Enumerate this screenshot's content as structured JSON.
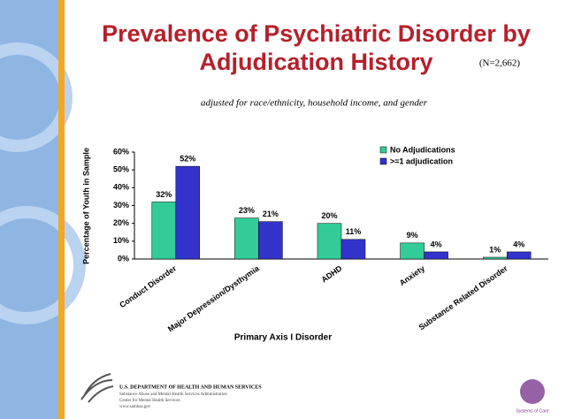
{
  "chart_data": {
    "type": "bar",
    "title": "Prevalence of Psychiatric Disorder by Adjudication History",
    "note": "(N=2,662)",
    "subtitle": "adjusted for race/ethnicity, household income, and gender",
    "x_label": "Primary Axis I Disorder",
    "y_label": "Percentage of Youth in Sample",
    "categories": [
      "Conduct Disorder",
      "Major Depression/Dysthymia",
      "ADHD",
      "Anxiety",
      "Substance Related Disorder"
    ],
    "series": [
      {
        "name": "No Adjudications",
        "color": "#33cc99",
        "values": [
          32,
          23,
          20,
          9,
          1
        ],
        "value_labels": [
          "32%",
          "23%",
          "20%",
          "9%",
          "1%"
        ]
      },
      {
        "name": ">=1 adjudication",
        "color": "#3333cc",
        "values": [
          52,
          21,
          11,
          4,
          4
        ],
        "value_labels": [
          "52%",
          "21%",
          "11%",
          "4%",
          "4%"
        ]
      }
    ],
    "ylim": [
      0,
      60
    ],
    "yticks": [
      {
        "value": 0,
        "label": "0%"
      },
      {
        "value": 10,
        "label": "10%"
      },
      {
        "value": 20,
        "label": "20%"
      },
      {
        "value": 30,
        "label": "30%"
      },
      {
        "value": 40,
        "label": "40%"
      },
      {
        "value": 50,
        "label": "50%"
      },
      {
        "value": 60,
        "label": "60%"
      }
    ],
    "grid": false,
    "legend": "top-right"
  },
  "footer": {
    "agency": "U.S. DEPARTMENT OF HEALTH AND HUMAN SERVICES",
    "lines": [
      "Substance Abuse and Mental Health Services Administration",
      "Center for Mental Health Services",
      "www.samhsa.gov"
    ],
    "logo_text": "Systems of Care"
  }
}
